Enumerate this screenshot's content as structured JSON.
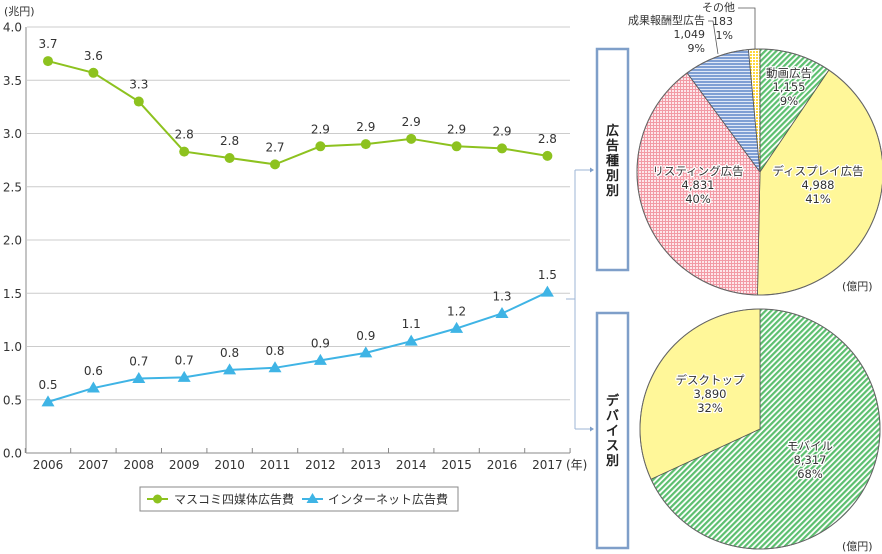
{
  "chart_data": [
    {
      "type": "line",
      "title": "",
      "ylabel": "(兆円)",
      "xlabel": "(年)",
      "ylim": [
        0,
        4.0
      ],
      "yticks": [
        "0.0",
        "0.5",
        "1.0",
        "1.5",
        "2.0",
        "2.5",
        "3.0",
        "3.5",
        "4.0"
      ],
      "ytick_values": [
        0,
        0.5,
        1.0,
        1.5,
        2.0,
        2.5,
        3.0,
        3.5,
        4.0
      ],
      "grid": true,
      "categories": [
        "2006",
        "2007",
        "2008",
        "2009",
        "2010",
        "2011",
        "2012",
        "2013",
        "2014",
        "2015",
        "2016",
        "2017"
      ],
      "series": [
        {
          "name": "マスコミ四媒体広告費",
          "marker": "circle",
          "color": "#8dc21f",
          "values": [
            3.68,
            3.57,
            3.3,
            2.83,
            2.77,
            2.71,
            2.88,
            2.9,
            2.95,
            2.88,
            2.86,
            2.79
          ],
          "labels": [
            "3.7",
            "3.6",
            "3.3",
            "2.8",
            "2.8",
            "2.7",
            "2.9",
            "2.9",
            "2.9",
            "2.9",
            "2.9",
            "2.8"
          ]
        },
        {
          "name": "インターネット広告費",
          "marker": "triangle",
          "color": "#3fb4e5",
          "values": [
            0.48,
            0.61,
            0.7,
            0.71,
            0.78,
            0.8,
            0.87,
            0.94,
            1.05,
            1.17,
            1.31,
            1.51
          ],
          "labels": [
            "0.5",
            "0.6",
            "0.7",
            "0.7",
            "0.8",
            "0.8",
            "0.9",
            "0.9",
            "1.1",
            "1.2",
            "1.3",
            "1.5"
          ]
        }
      ],
      "legend": "bottom"
    },
    {
      "type": "pie",
      "title": "広告種別別",
      "unit": "(億円)",
      "slices": [
        {
          "name": "ディスプレイ広告",
          "value": 4988,
          "value_label": "4,988",
          "percent": "41%",
          "color": "#fff799",
          "pattern": "solid"
        },
        {
          "name": "リスティング広告",
          "value": 4831,
          "value_label": "4,831",
          "percent": "40%",
          "color": "#f29aa5",
          "pattern": "grid"
        },
        {
          "name": "成果報酬型広告",
          "value": 1049,
          "value_label": "1,049",
          "percent": "9%",
          "color": "#7f9fd4",
          "pattern": "horizontal-lines"
        },
        {
          "name": "その他",
          "value": 183,
          "value_label": "183",
          "percent": "1%",
          "color": "#ffe14d",
          "pattern": "dots"
        },
        {
          "name": "動画広告",
          "value": 1155,
          "value_label": "1,155",
          "percent": "9%",
          "color": "#5cbf6f",
          "pattern": "diagonal"
        }
      ]
    },
    {
      "type": "pie",
      "title": "デバイス別",
      "unit": "(億円)",
      "slices": [
        {
          "name": "モバイル",
          "value": 8317,
          "value_label": "8,317",
          "percent": "68%",
          "color": "#5cbf6f",
          "pattern": "diagonal"
        },
        {
          "name": "デスクトップ",
          "value": 3890,
          "value_label": "3,890",
          "percent": "32%",
          "color": "#fff799",
          "pattern": "solid"
        }
      ]
    }
  ]
}
